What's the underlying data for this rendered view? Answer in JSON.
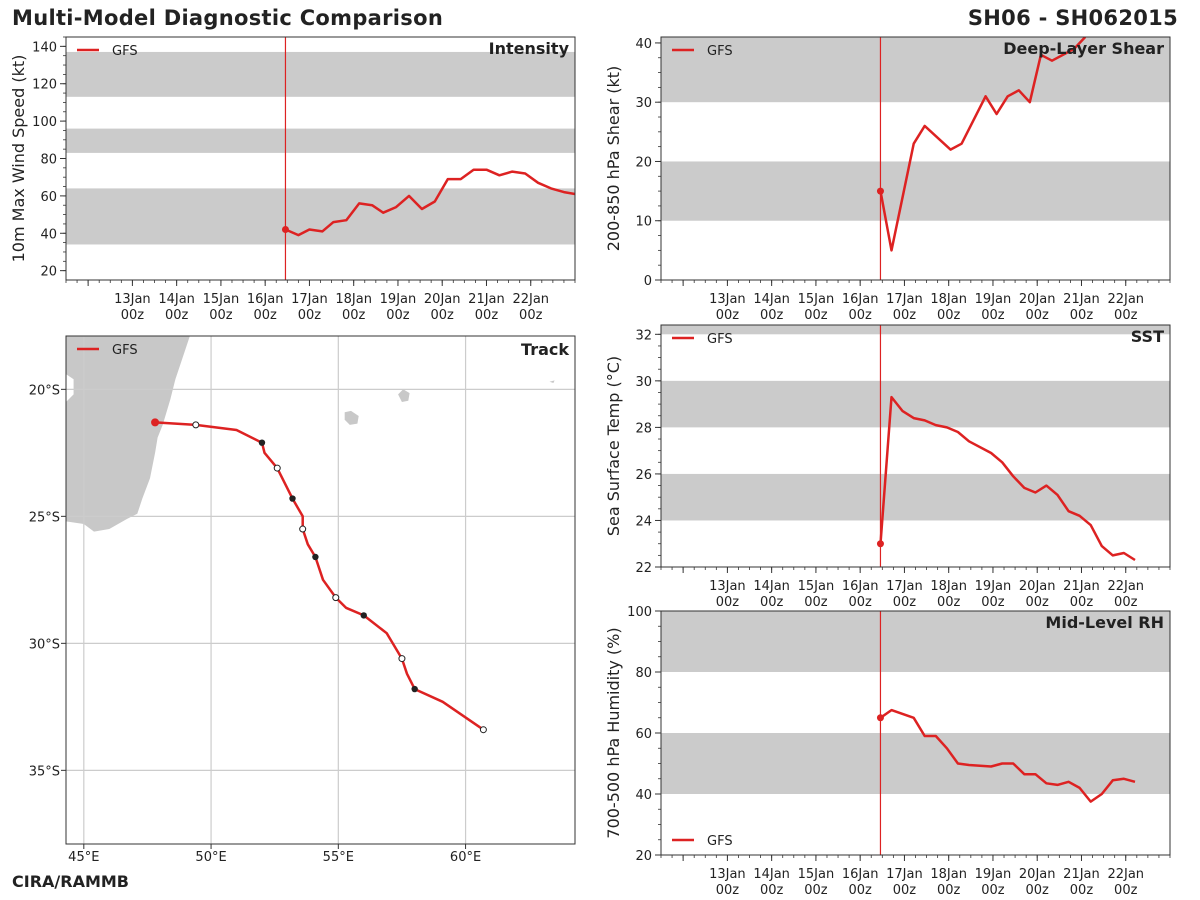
{
  "header": {
    "title_left": "Multi-Model Diagnostic Comparison",
    "title_right": "SH06 - SH062015"
  },
  "footer": {
    "credit": "CIRA/RAMMB"
  },
  "colors": {
    "series": "#dd2222",
    "band": "#cbcbcb",
    "grid": "#cccccc",
    "land": "#c8c8c8"
  },
  "time_axis": {
    "range_hours": [
      -12,
      264
    ],
    "ticks": [
      0,
      24,
      48,
      72,
      96,
      120,
      144,
      168,
      192,
      216,
      240
    ],
    "labels_day": [
      "13Jan",
      "14Jan",
      "15Jan",
      "16Jan",
      "17Jan",
      "18Jan",
      "19Jan",
      "20Jan",
      "21Jan",
      "22Jan"
    ],
    "labels_hour": "00z",
    "label_start_hour": 24,
    "init_hour": 107
  },
  "chart_data": [
    {
      "id": "intensity",
      "type": "line",
      "title": "Intensity",
      "ylabel": "10m Max Wind Speed (kt)",
      "ylim": [
        15,
        145
      ],
      "yticks": [
        20,
        40,
        60,
        80,
        100,
        120,
        140
      ],
      "bands": [
        [
          34,
          64
        ],
        [
          83,
          96
        ],
        [
          113,
          137
        ]
      ],
      "legend": "GFS",
      "legend_position": "top-left",
      "series": [
        {
          "name": "GFS",
          "x": [
            107,
            114,
            120,
            127,
            133,
            140,
            147,
            154,
            160,
            167,
            174,
            181,
            188,
            195,
            202,
            209,
            216,
            223,
            230,
            237,
            244,
            251,
            258,
            264
          ],
          "values": [
            42,
            39,
            42,
            41,
            46,
            47,
            56,
            55,
            51,
            54,
            60,
            53,
            57,
            69,
            69,
            74,
            74,
            71,
            73,
            72,
            67,
            64,
            62,
            61
          ]
        }
      ]
    },
    {
      "id": "shear",
      "type": "line",
      "title": "Deep-Layer Shear",
      "ylabel": "200-850 hPa Shear (kt)",
      "ylim": [
        0,
        41
      ],
      "yticks": [
        0,
        10,
        20,
        30,
        40
      ],
      "bands": [
        [
          10,
          20
        ],
        [
          30,
          41
        ]
      ],
      "legend": "GFS",
      "legend_position": "top-left",
      "series": [
        {
          "name": "GFS",
          "x": [
            107,
            113,
            125,
            131,
            145,
            151,
            164,
            170,
            176,
            182,
            188,
            194,
            200,
            212,
            218
          ],
          "values": [
            15,
            5,
            23,
            26,
            22,
            23,
            31,
            28,
            31,
            32,
            30,
            38,
            37,
            39,
            41
          ]
        }
      ]
    },
    {
      "id": "sst",
      "type": "line",
      "title": "SST",
      "ylabel": "Sea Surface Temp (°C)",
      "ylim": [
        22,
        32.4
      ],
      "yticks": [
        22,
        24,
        26,
        28,
        30,
        32
      ],
      "bands": [
        [
          24,
          26
        ],
        [
          28,
          30
        ],
        [
          32,
          32.4
        ]
      ],
      "legend": "GFS",
      "legend_position": "top-left",
      "series": [
        {
          "name": "GFS",
          "x": [
            107,
            113,
            119,
            125,
            131,
            137,
            143,
            149,
            155,
            167,
            173,
            179,
            185,
            191,
            197,
            203,
            209,
            215,
            221,
            227,
            233,
            239,
            245
          ],
          "values": [
            23.0,
            29.3,
            28.7,
            28.4,
            28.3,
            28.1,
            28.0,
            27.8,
            27.4,
            26.9,
            26.5,
            25.9,
            25.4,
            25.2,
            25.5,
            25.1,
            24.4,
            24.2,
            23.8,
            22.9,
            22.5,
            22.6,
            22.3
          ]
        }
      ]
    },
    {
      "id": "rh",
      "type": "line",
      "title": "Mid-Level RH",
      "ylabel": "700-500 hPa Humidity (%)",
      "ylim": [
        20,
        100
      ],
      "yticks": [
        20,
        40,
        60,
        80,
        100
      ],
      "bands": [
        [
          40,
          60
        ],
        [
          80,
          100
        ]
      ],
      "legend": "GFS",
      "legend_position": "bottom-left",
      "series": [
        {
          "name": "GFS",
          "x": [
            107,
            113,
            125,
            131,
            137,
            143,
            149,
            155,
            167,
            173,
            179,
            185,
            191,
            197,
            203,
            209,
            215,
            221,
            227,
            233,
            239,
            245
          ],
          "values": [
            65,
            67.5,
            65,
            59,
            59,
            55,
            50,
            49.5,
            49,
            50,
            50,
            46.5,
            46.5,
            43.5,
            43,
            44,
            42,
            37.5,
            40,
            44.5,
            45,
            44
          ]
        }
      ]
    },
    {
      "id": "track",
      "type": "map",
      "title": "Track",
      "legend": "GFS",
      "legend_position": "top-left",
      "lon_range": [
        44.3,
        64.3
      ],
      "lat_range": [
        -37.9,
        -17.9
      ],
      "lon_ticks": [
        45,
        50,
        55,
        60
      ],
      "lon_labels": [
        "45°E",
        "50°E",
        "55°E",
        "60°E"
      ],
      "lat_ticks": [
        -20,
        -25,
        -30,
        -35
      ],
      "lat_labels": [
        "20°S",
        "25°S",
        "30°S",
        "35°S"
      ],
      "track": [
        [
          47.8,
          -21.3
        ],
        [
          49.4,
          -21.4
        ],
        [
          51.0,
          -21.6
        ],
        [
          52.0,
          -22.1
        ],
        [
          52.1,
          -22.5
        ],
        [
          52.6,
          -23.1
        ],
        [
          53.2,
          -24.3
        ],
        [
          53.6,
          -25.0
        ],
        [
          53.6,
          -25.5
        ],
        [
          53.8,
          -26.1
        ],
        [
          54.1,
          -26.6
        ],
        [
          54.4,
          -27.5
        ],
        [
          54.9,
          -28.2
        ],
        [
          55.3,
          -28.6
        ],
        [
          56.0,
          -28.9
        ],
        [
          56.9,
          -29.6
        ],
        [
          57.5,
          -30.6
        ],
        [
          57.7,
          -31.2
        ],
        [
          58.0,
          -31.8
        ],
        [
          59.1,
          -32.3
        ],
        [
          60.7,
          -33.4
        ]
      ],
      "track_points": [
        {
          "lon": 47.8,
          "lat": -21.3,
          "kind": "init"
        },
        {
          "lon": 49.4,
          "lat": -21.4,
          "kind": "open"
        },
        {
          "lon": 52.0,
          "lat": -22.1,
          "kind": "filled"
        },
        {
          "lon": 52.6,
          "lat": -23.1,
          "kind": "open"
        },
        {
          "lon": 53.2,
          "lat": -24.3,
          "kind": "filled"
        },
        {
          "lon": 53.6,
          "lat": -25.5,
          "kind": "open"
        },
        {
          "lon": 54.1,
          "lat": -26.6,
          "kind": "filled"
        },
        {
          "lon": 54.9,
          "lat": -28.2,
          "kind": "open"
        },
        {
          "lon": 56.0,
          "lat": -28.9,
          "kind": "filled"
        },
        {
          "lon": 57.5,
          "lat": -30.6,
          "kind": "open"
        },
        {
          "lon": 58.0,
          "lat": -31.8,
          "kind": "filled"
        },
        {
          "lon": 60.7,
          "lat": -33.4,
          "kind": "open"
        }
      ],
      "land": {
        "madagascar": [
          [
            44.3,
            -20.0
          ],
          [
            44.3,
            -19.4
          ],
          [
            44.6,
            -19.6
          ],
          [
            44.6,
            -20.2
          ],
          [
            44.3,
            -20.5
          ],
          [
            44.3,
            -25.2
          ],
          [
            45.0,
            -25.3
          ],
          [
            45.4,
            -25.6
          ],
          [
            46.0,
            -25.5
          ],
          [
            46.7,
            -25.1
          ],
          [
            47.1,
            -24.9
          ],
          [
            47.3,
            -24.3
          ],
          [
            47.6,
            -23.5
          ],
          [
            47.8,
            -22.5
          ],
          [
            47.9,
            -21.9
          ],
          [
            48.1,
            -21.4
          ],
          [
            48.4,
            -20.4
          ],
          [
            48.6,
            -19.6
          ],
          [
            48.9,
            -18.7
          ],
          [
            49.2,
            -17.8
          ],
          [
            44.3,
            -17.8
          ]
        ],
        "reunion": [
          [
            55.25,
            -20.9
          ],
          [
            55.5,
            -20.85
          ],
          [
            55.8,
            -21.05
          ],
          [
            55.75,
            -21.35
          ],
          [
            55.45,
            -21.4
          ],
          [
            55.25,
            -21.2
          ]
        ],
        "mauritius": [
          [
            57.35,
            -20.2
          ],
          [
            57.55,
            -20.0
          ],
          [
            57.8,
            -20.15
          ],
          [
            57.75,
            -20.45
          ],
          [
            57.5,
            -20.5
          ]
        ],
        "rodrigues": [
          [
            63.3,
            -19.7
          ],
          [
            63.5,
            -19.65
          ],
          [
            63.45,
            -19.75
          ]
        ]
      }
    }
  ]
}
